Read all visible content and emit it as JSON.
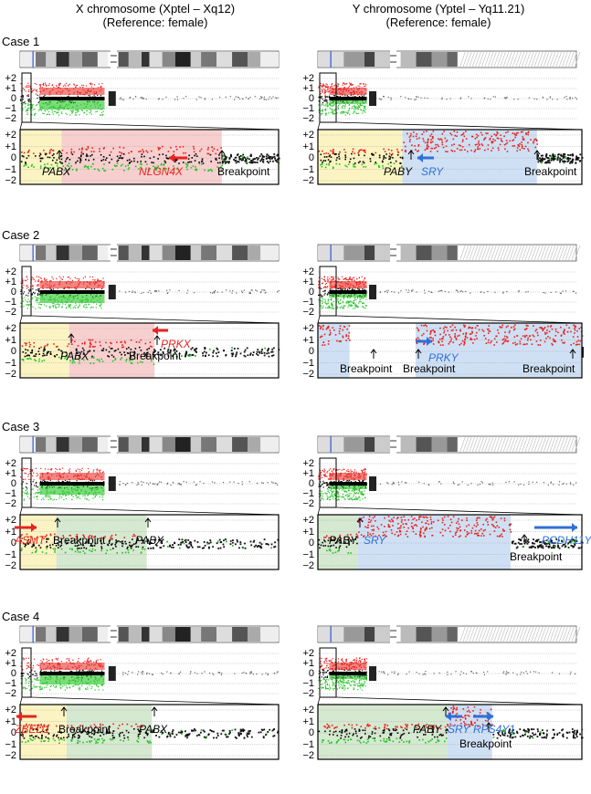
{
  "headers": {
    "x_title": "X chromosome (Xptel – Xq12)",
    "x_subtitle": "(Reference: female)",
    "y_title": "Y chromosome (Yptel – Yq11.21)",
    "y_subtitle": "(Reference: female)"
  },
  "ticks": [
    "+2",
    "+1",
    "0",
    "−1",
    "−2"
  ],
  "cases": [
    {
      "label": "Case 1",
      "x_labels": [
        {
          "text": "PABX",
          "color": "black",
          "italic": true
        },
        {
          "text": "NLGN4X",
          "color": "red",
          "italic": true
        },
        {
          "text": "Breakpoint",
          "color": "black",
          "italic": false
        }
      ],
      "y_labels": [
        {
          "text": "PABY",
          "color": "black",
          "italic": true
        },
        {
          "text": "SRY",
          "color": "blue",
          "italic": true
        },
        {
          "text": "Breakpoint",
          "color": "black",
          "italic": false
        }
      ]
    },
    {
      "label": "Case 2",
      "x_labels": [
        {
          "text": "PABX",
          "color": "black",
          "italic": true
        },
        {
          "text": "PRKX",
          "color": "red",
          "italic": true
        },
        {
          "text": "Breakpoint",
          "color": "black",
          "italic": false
        }
      ],
      "y_labels": [
        {
          "text": "Breakpoint",
          "color": "black",
          "italic": false
        },
        {
          "text": "Breakpoint",
          "color": "black",
          "italic": false
        },
        {
          "text": "PRKY",
          "color": "blue",
          "italic": true
        },
        {
          "text": "Breakpoint",
          "color": "black",
          "italic": false
        }
      ]
    },
    {
      "label": "Case 3",
      "x_labels": [
        {
          "text": "ASMT",
          "color": "red",
          "italic": true
        },
        {
          "text": "Breakpoint",
          "color": "black",
          "italic": false
        },
        {
          "text": "PABX",
          "color": "black",
          "italic": true
        }
      ],
      "y_labels": [
        {
          "text": "PABY",
          "color": "black",
          "italic": true
        },
        {
          "text": "SRY",
          "color": "blue",
          "italic": true
        },
        {
          "text": "PCDH11Y",
          "color": "blue",
          "italic": true
        },
        {
          "text": "Breakpoint",
          "color": "black",
          "italic": false
        }
      ]
    },
    {
      "label": "Case 4",
      "x_labels": [
        {
          "text": "ZBED1",
          "color": "red",
          "italic": true
        },
        {
          "text": "Breakpoint",
          "color": "black",
          "italic": false
        },
        {
          "text": "PABX",
          "color": "black",
          "italic": true
        }
      ],
      "y_labels": [
        {
          "text": "PABY",
          "color": "black",
          "italic": true
        },
        {
          "text": "SRY",
          "color": "blue",
          "italic": true
        },
        {
          "text": "RPS4Y1",
          "color": "blue",
          "italic": true
        },
        {
          "text": "Breakpoint",
          "color": "black",
          "italic": false
        }
      ]
    }
  ],
  "colors": {
    "gain": "#e8231d",
    "loss": "#23c423",
    "neutral": "#000000",
    "region_yellow": "#fbf4c2",
    "region_red": "#f7cfcf",
    "region_blue": "#cfe0f4",
    "region_green": "#d5e8d0",
    "arrow_red": "#e8231d",
    "arrow_blue": "#2f6fd8"
  }
}
